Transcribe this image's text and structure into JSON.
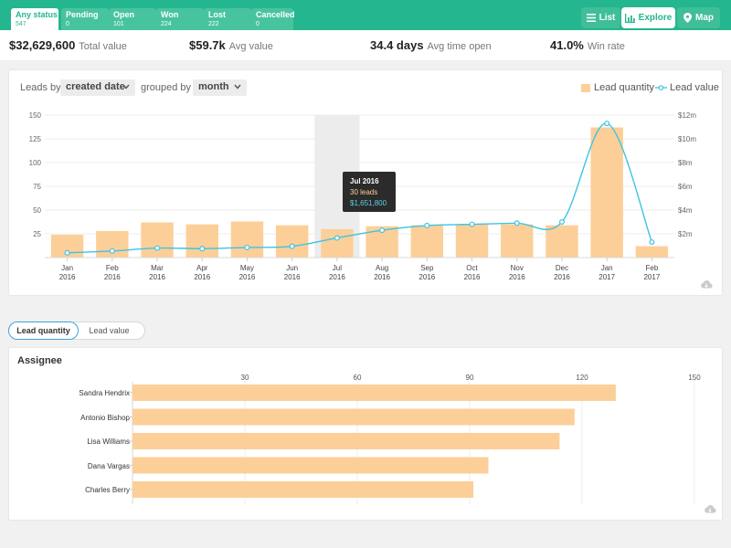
{
  "status_tabs": [
    {
      "label": "Any status",
      "count": "547"
    },
    {
      "label": "Pending",
      "count": "0"
    },
    {
      "label": "Open",
      "count": "101"
    },
    {
      "label": "Won",
      "count": "224"
    },
    {
      "label": "Lost",
      "count": "222"
    },
    {
      "label": "Cancelled",
      "count": "0"
    }
  ],
  "view_switch": [
    {
      "label": "List",
      "icon": "list-icon"
    },
    {
      "label": "Explore",
      "icon": "bar-chart-icon"
    },
    {
      "label": "Map",
      "icon": "map-pin-icon"
    }
  ],
  "kpis": [
    {
      "value": "$32,629,600",
      "label": "Total value"
    },
    {
      "value": "$59.7k",
      "label": "Avg value"
    },
    {
      "value": "34.4 days",
      "label": "Avg time open"
    },
    {
      "value": "41.0%",
      "label": "Win rate"
    }
  ],
  "controls": {
    "leads_by": "Leads by",
    "leads_by_value": "created date",
    "grouped_by": "grouped by",
    "grouped_by_value": "month"
  },
  "legend": {
    "bar": "Lead quantity",
    "line": "Lead value"
  },
  "tooltip": {
    "title": "Jul 2016",
    "quantity": "30 leads",
    "value": "$1,651,800"
  },
  "toggle": {
    "left": "Lead quantity",
    "right": "Lead value"
  },
  "assignee_title": "Assignee",
  "colors": {
    "accent": "#24b68f",
    "bar": "#fccf99",
    "line": "#3fc3e3"
  },
  "chart_data": [
    {
      "type": "bar",
      "categories": [
        "Jan\n2016",
        "Feb\n2016",
        "Mar\n2016",
        "Apr\n2016",
        "May\n2016",
        "Jun\n2016",
        "Jul\n2016",
        "Aug\n2016",
        "Sep\n2016",
        "Oct\n2016",
        "Nov\n2016",
        "Dec\n2016",
        "Jan\n2017",
        "Feb\n2017"
      ],
      "series": [
        {
          "name": "Lead quantity",
          "axis": "left",
          "values": [
            24,
            28,
            37,
            35,
            38,
            34,
            30,
            33,
            34,
            35,
            35,
            34,
            137,
            12
          ]
        },
        {
          "name": "Lead value",
          "axis": "right",
          "values": [
            0.4,
            0.55,
            0.8,
            0.75,
            0.85,
            0.95,
            1.6518,
            2.3,
            2.7,
            2.8,
            2.9,
            3.0,
            11.3,
            1.3
          ]
        }
      ],
      "y_left_ticks": [
        "25",
        "50",
        "75",
        "100",
        "125",
        "150"
      ],
      "y_left_lim": [
        0,
        150
      ],
      "y_right_ticks": [
        "$2m",
        "$4m",
        "$6m",
        "$8m",
        "$10m",
        "$12m"
      ],
      "y_right_lim": [
        0,
        12
      ],
      "highlight": "Jul\n2016",
      "grid": true,
      "legend_position": "top-right"
    },
    {
      "type": "bar",
      "orientation": "horizontal",
      "categories": [
        "Sandra Hendrix",
        "Antonio Bishop",
        "Lisa Williams",
        "Dana Vargas",
        "Charles Berry"
      ],
      "values": [
        129,
        118,
        114,
        95,
        91
      ],
      "x_ticks": [
        "30",
        "60",
        "90",
        "120",
        "150"
      ],
      "xlim": [
        0,
        150
      ],
      "grid": true
    }
  ]
}
